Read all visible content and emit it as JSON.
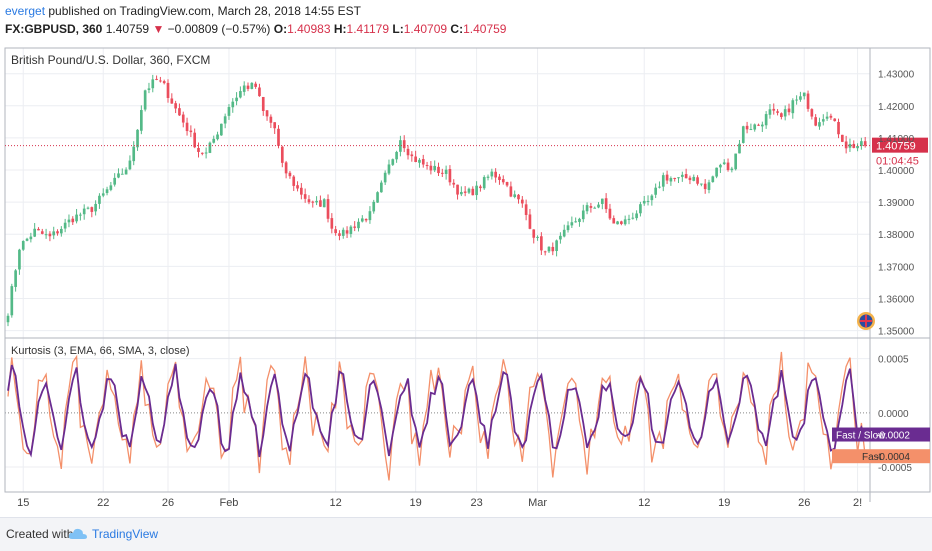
{
  "header": {
    "username": "everget",
    "published_text": "published on TradingView.com, March 28, 2018 14:55 EST",
    "symbol": "FX:GBPUSD, 360",
    "last_price": "1.40759",
    "change_arrow": "▼",
    "change": "−0.00809 (−0.57%)",
    "open_label": "O:",
    "open": "1.40983",
    "high_label": "H:",
    "high": "1.41179",
    "low_label": "L:",
    "low": "1.40709",
    "close_label": "C:",
    "close": "1.40759"
  },
  "footer": {
    "created_with": "Created with",
    "brand": "TradingView"
  },
  "chart_data": [
    {
      "type": "candlestick",
      "title": "British Pound/U.S. Dollar, 360, FXCM",
      "ylim": [
        1.348,
        1.438
      ],
      "y_ticks": [
        "1.43000",
        "1.42000",
        "1.41000",
        "1.40000",
        "1.39000",
        "1.38000",
        "1.37000",
        "1.36000",
        "1.35000"
      ],
      "price_label": "1.40759",
      "countdown_label": "01:04:45",
      "up_color": "#53b987",
      "down_color": "#eb4d5c",
      "anchors": [
        [
          0,
          1.356
        ],
        [
          3,
          1.376
        ],
        [
          7,
          1.381
        ],
        [
          11,
          1.379
        ],
        [
          17,
          1.385
        ],
        [
          22,
          1.388
        ],
        [
          27,
          1.395
        ],
        [
          32,
          1.402
        ],
        [
          36,
          1.425
        ],
        [
          39,
          1.428
        ],
        [
          41,
          1.426
        ],
        [
          44,
          1.419
        ],
        [
          47,
          1.413
        ],
        [
          50,
          1.406
        ],
        [
          52,
          1.405
        ],
        [
          55,
          1.412
        ],
        [
          58,
          1.42
        ],
        [
          62,
          1.426
        ],
        [
          65,
          1.426
        ],
        [
          67,
          1.418
        ],
        [
          70,
          1.413
        ],
        [
          72,
          1.401
        ],
        [
          76,
          1.394
        ],
        [
          80,
          1.389
        ],
        [
          83,
          1.39
        ],
        [
          85,
          1.382
        ],
        [
          88,
          1.38
        ],
        [
          92,
          1.384
        ],
        [
          95,
          1.386
        ],
        [
          99,
          1.398
        ],
        [
          103,
          1.41
        ],
        [
          106,
          1.404
        ],
        [
          110,
          1.401
        ],
        [
          115,
          1.399
        ],
        [
          119,
          1.392
        ],
        [
          123,
          1.394
        ],
        [
          127,
          1.399
        ],
        [
          130,
          1.397
        ],
        [
          132,
          1.393
        ],
        [
          135,
          1.389
        ],
        [
          138,
          1.38
        ],
        [
          141,
          1.374
        ],
        [
          144,
          1.377
        ],
        [
          148,
          1.383
        ],
        [
          152,
          1.388
        ],
        [
          156,
          1.39
        ],
        [
          159,
          1.383
        ],
        [
          162,
          1.384
        ],
        [
          165,
          1.387
        ],
        [
          169,
          1.391
        ],
        [
          172,
          1.398
        ],
        [
          176,
          1.397
        ],
        [
          180,
          1.398
        ],
        [
          183,
          1.394
        ],
        [
          187,
          1.402
        ],
        [
          190,
          1.401
        ],
        [
          193,
          1.413
        ],
        [
          197,
          1.414
        ],
        [
          200,
          1.418
        ],
        [
          203,
          1.416
        ],
        [
          206,
          1.421
        ],
        [
          209,
          1.423
        ],
        [
          212,
          1.415
        ],
        [
          215,
          1.418
        ],
        [
          218,
          1.412
        ],
        [
          220,
          1.4076
        ]
      ]
    },
    {
      "type": "line",
      "title": "Kurtosis (3, EMA, 66, SMA, 3, close)",
      "ylim": [
        -0.00073,
        0.00069
      ],
      "y_ticks": [
        "0.0005",
        "0.0000",
        "-0.0005"
      ],
      "series": [
        {
          "name": "Fast / Slow",
          "color": "#6a2c91",
          "last_label": "-0.0002"
        },
        {
          "name": "Fast",
          "color": "#f4906a",
          "last_label": "-0.0004"
        }
      ]
    }
  ],
  "x_labels": [
    {
      "text": "15",
      "bar": 4
    },
    {
      "text": "22",
      "bar": 25
    },
    {
      "text": "26",
      "bar": 42
    },
    {
      "text": "Feb",
      "bar": 58
    },
    {
      "text": "12",
      "bar": 86
    },
    {
      "text": "19",
      "bar": 107
    },
    {
      "text": "23",
      "bar": 123
    },
    {
      "text": "Mar",
      "bar": 139
    },
    {
      "text": "12",
      "bar": 167
    },
    {
      "text": "19",
      "bar": 188
    },
    {
      "text": "26",
      "bar": 209
    },
    {
      "text": "2!",
      "bar": 223
    }
  ]
}
